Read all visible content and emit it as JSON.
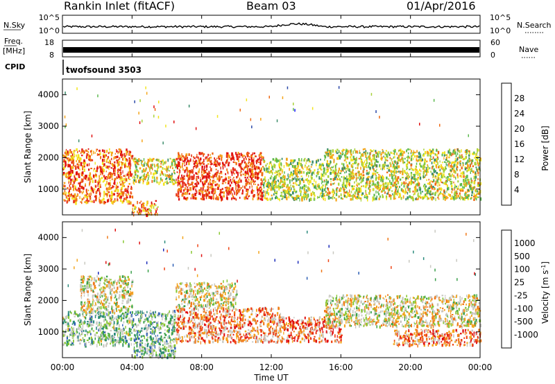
{
  "header": {
    "title": "Rankin Inlet (fitACF)",
    "beam": "Beam 03",
    "date": "01/Apr/2016"
  },
  "strips": {
    "nsky_label": "N.Sky",
    "nsky_ticks": [
      "10^5",
      "10^0"
    ],
    "nsearch_label": "N.Search",
    "nsearch_ticks": [
      "10^5",
      "10^0"
    ],
    "freq_label_1": "Freq.",
    "freq_label_2": "[MHz]",
    "freq_ticks": [
      "18",
      "8"
    ],
    "nave_label": "Nave",
    "nave_ticks": [
      "60",
      "0"
    ],
    "cpid_label": "CPID",
    "cpid_value": "twofsound 3503"
  },
  "colors": {
    "power": [
      "#1515ff",
      "#2a48a8",
      "#3a8c6a",
      "#5cb94e",
      "#a8d23a",
      "#f2e51e",
      "#f5a51a",
      "#ef6a15",
      "#e8331a",
      "#e01010"
    ],
    "velocity": [
      "#e01010",
      "#ef4516",
      "#f07a1a",
      "#f3a51d",
      "#c8c8c0",
      "#c8c8c0",
      "#88c833",
      "#3aa04a",
      "#2a8a7c",
      "#2a5cb3",
      "#1a2ab9"
    ]
  },
  "chart_data": [
    {
      "type": "heatmap",
      "quantity": "power",
      "ylabel": "Slant Range [km]",
      "colorbar_label": "Power [dB]",
      "colorbar_ticks": [
        "28",
        "24",
        "20",
        "16",
        "12",
        "8",
        "4"
      ],
      "ylim": [
        180,
        4500
      ],
      "yticks": [
        "4000",
        "3000",
        "2000",
        "1000"
      ],
      "ytick_values": [
        4000,
        3000,
        2000,
        1000
      ],
      "echo_regions": [
        {
          "t0": 0.0,
          "t1": 4.0,
          "r0": 600,
          "r1": 2300,
          "level": 0.75
        },
        {
          "t0": 4.0,
          "t1": 5.5,
          "r0": 200,
          "r1": 650,
          "level": 0.7
        },
        {
          "t0": 4.0,
          "t1": 6.5,
          "r0": 1200,
          "r1": 2000,
          "level": 0.5
        },
        {
          "t0": 6.5,
          "t1": 11.5,
          "r0": 700,
          "r1": 2200,
          "level": 0.85
        },
        {
          "t0": 11.5,
          "t1": 15.0,
          "r0": 700,
          "r1": 2000,
          "level": 0.45
        },
        {
          "t0": 15.0,
          "t1": 24.0,
          "r0": 700,
          "r1": 2300,
          "level": 0.5
        }
      ]
    },
    {
      "type": "heatmap",
      "quantity": "velocity",
      "ylabel": "Slant Range [km]",
      "xlabel": "Time UT",
      "colorbar_label": "Velocity [m s^-1]",
      "colorbar_ticks": [
        "1000",
        "500",
        "100",
        "25",
        "-25",
        "-100",
        "-500",
        "-1000"
      ],
      "ylim": [
        180,
        4500
      ],
      "yticks": [
        "4000",
        "3000",
        "2000",
        "1000"
      ],
      "ytick_values": [
        4000,
        3000,
        2000,
        1000
      ],
      "xticks": [
        "00:00",
        "04:00",
        "08:00",
        "12:00",
        "16:00",
        "20:00",
        "00:00"
      ],
      "xtick_hours": [
        0,
        4,
        8,
        12,
        16,
        20,
        24
      ],
      "xlim": [
        0,
        24
      ],
      "echo_regions": [
        {
          "t0": 0.0,
          "t1": 4.0,
          "r0": 600,
          "r1": 1700,
          "level": 0.6
        },
        {
          "t0": 1.0,
          "t1": 4.0,
          "r0": 1700,
          "r1": 2800,
          "level": 0.45
        },
        {
          "t0": 4.0,
          "t1": 6.5,
          "r0": 200,
          "r1": 1700,
          "level": 0.65
        },
        {
          "t0": 6.5,
          "t1": 12.5,
          "r0": 700,
          "r1": 1800,
          "level": 0.25
        },
        {
          "t0": 6.5,
          "t1": 10.0,
          "r0": 1800,
          "r1": 2600,
          "level": 0.45
        },
        {
          "t0": 12.5,
          "t1": 16.0,
          "r0": 700,
          "r1": 1500,
          "level": 0.2
        },
        {
          "t0": 15.0,
          "t1": 24.0,
          "r0": 1200,
          "r1": 2200,
          "level": 0.45
        },
        {
          "t0": 19.0,
          "t1": 24.0,
          "r0": 600,
          "r1": 1100,
          "level": 0.2
        }
      ]
    }
  ]
}
